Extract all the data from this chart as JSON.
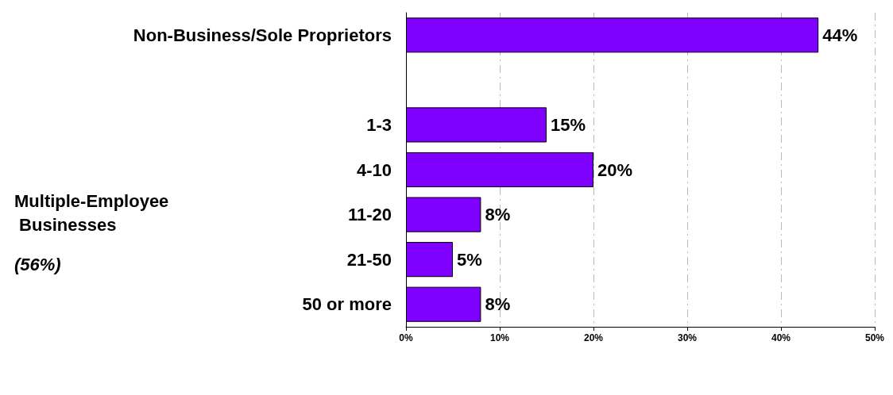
{
  "chart_data": {
    "type": "bar",
    "orientation": "horizontal",
    "categories": [
      "Non-Business/Sole Proprietors",
      null,
      "1-3",
      "4-10",
      "11-20",
      "21-50",
      "50 or more"
    ],
    "values": [
      44,
      null,
      15,
      20,
      8,
      5,
      8
    ],
    "value_labels": [
      "44%",
      null,
      "15%",
      "20%",
      "8%",
      "5%",
      "8%"
    ],
    "color": "#7f00ff",
    "xlim": [
      0,
      50
    ],
    "xticks": [
      {
        "value": 0,
        "label": "0%"
      },
      {
        "value": 10,
        "label": "10%"
      },
      {
        "value": 20,
        "label": "20%"
      },
      {
        "value": 30,
        "label": "30%"
      },
      {
        "value": 40,
        "label": "40%"
      },
      {
        "value": 50,
        "label": "50%"
      }
    ],
    "grid": "x",
    "annotations": [
      "Multiple-Employee Businesses",
      "(56%)"
    ]
  }
}
